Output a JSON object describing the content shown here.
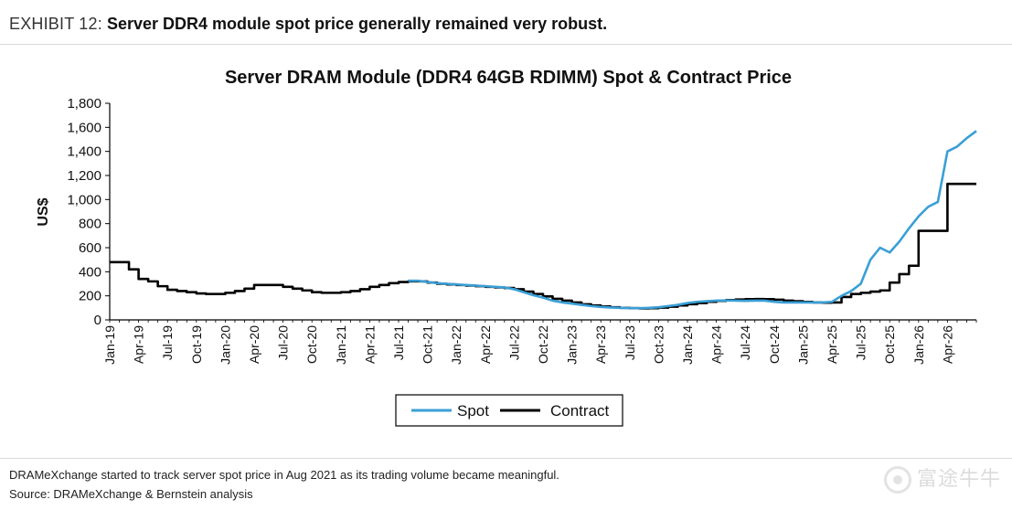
{
  "exhibit": {
    "label": "EXHIBIT 12:",
    "title": "Server DDR4 module spot price generally remained very robust."
  },
  "footnotes": {
    "note": "DRAMeXchange started to track server spot price in Aug 2021 as its trading volume became meaningful.",
    "source": "Source: DRAMeXchange & Bernstein analysis"
  },
  "watermark": {
    "text": "富途牛牛"
  },
  "chart_data": {
    "type": "line",
    "title": "Server DRAM Module (DDR4 64GB RDIMM) Spot & Contract Price",
    "xlabel": "",
    "ylabel": "US$",
    "ylim": [
      0,
      1800
    ],
    "yticks": [
      0,
      200,
      400,
      600,
      800,
      1000,
      1200,
      1400,
      1600,
      1800
    ],
    "ytick_labels": [
      "0",
      "200",
      "400",
      "600",
      "800",
      "1,000",
      "1,200",
      "1,400",
      "1,600",
      "1,800"
    ],
    "x_start": "Jan-19",
    "x_end": "Jul-26",
    "x_tick_labels": [
      "Jan-19",
      "Apr-19",
      "Jul-19",
      "Oct-19",
      "Jan-20",
      "Apr-20",
      "Jul-20",
      "Oct-20",
      "Jan-21",
      "Apr-21",
      "Jul-21",
      "Oct-21",
      "Jan-22",
      "Apr-22",
      "Jul-22",
      "Oct-22",
      "Jan-23",
      "Apr-23",
      "Jul-23",
      "Oct-23",
      "Jan-24",
      "Apr-24",
      "Jul-24",
      "Oct-24",
      "Jan-25",
      "Apr-25",
      "Jul-25",
      "Oct-25",
      "Jan-26",
      "Apr-26"
    ],
    "legend": {
      "placement": "bottom-center",
      "entries": [
        "Spot",
        "Contract"
      ]
    },
    "colors": {
      "spot": "#3a9fd6",
      "contract": "#000000"
    },
    "series": [
      {
        "name": "Contract",
        "step": true,
        "points": [
          [
            "Jan-19",
            480
          ],
          [
            "Mar-19",
            420
          ],
          [
            "Apr-19",
            340
          ],
          [
            "May-19",
            320
          ],
          [
            "Jun-19",
            280
          ],
          [
            "Jul-19",
            250
          ],
          [
            "Aug-19",
            240
          ],
          [
            "Sep-19",
            230
          ],
          [
            "Oct-19",
            220
          ],
          [
            "Nov-19",
            215
          ],
          [
            "Dec-19",
            215
          ],
          [
            "Jan-20",
            225
          ],
          [
            "Feb-20",
            240
          ],
          [
            "Mar-20",
            260
          ],
          [
            "Apr-20",
            290
          ],
          [
            "May-20",
            290
          ],
          [
            "Jun-20",
            290
          ],
          [
            "Jul-20",
            275
          ],
          [
            "Aug-20",
            260
          ],
          [
            "Sep-20",
            245
          ],
          [
            "Oct-20",
            230
          ],
          [
            "Nov-20",
            225
          ],
          [
            "Dec-20",
            225
          ],
          [
            "Jan-21",
            230
          ],
          [
            "Feb-21",
            240
          ],
          [
            "Mar-21",
            255
          ],
          [
            "Apr-21",
            275
          ],
          [
            "May-21",
            290
          ],
          [
            "Jun-21",
            305
          ],
          [
            "Jul-21",
            315
          ],
          [
            "Aug-21",
            320
          ],
          [
            "Sep-21",
            320
          ],
          [
            "Oct-21",
            310
          ],
          [
            "Nov-21",
            300
          ],
          [
            "Dec-21",
            295
          ],
          [
            "Jan-22",
            290
          ],
          [
            "Feb-22",
            285
          ],
          [
            "Mar-22",
            280
          ],
          [
            "Apr-22",
            275
          ],
          [
            "May-22",
            270
          ],
          [
            "Jun-22",
            265
          ],
          [
            "Jul-22",
            255
          ],
          [
            "Aug-22",
            235
          ],
          [
            "Sep-22",
            215
          ],
          [
            "Oct-22",
            195
          ],
          [
            "Nov-22",
            175
          ],
          [
            "Dec-22",
            160
          ],
          [
            "Jan-23",
            145
          ],
          [
            "Feb-23",
            130
          ],
          [
            "Mar-23",
            120
          ],
          [
            "Apr-23",
            112
          ],
          [
            "May-23",
            105
          ],
          [
            "Jun-23",
            100
          ],
          [
            "Jul-23",
            97
          ],
          [
            "Aug-23",
            95
          ],
          [
            "Sep-23",
            97
          ],
          [
            "Oct-23",
            102
          ],
          [
            "Nov-23",
            110
          ],
          [
            "Dec-23",
            120
          ],
          [
            "Jan-24",
            130
          ],
          [
            "Feb-24",
            140
          ],
          [
            "Mar-24",
            150
          ],
          [
            "Apr-24",
            158
          ],
          [
            "May-24",
            165
          ],
          [
            "Jun-24",
            170
          ],
          [
            "Jul-24",
            172
          ],
          [
            "Aug-24",
            173
          ],
          [
            "Sep-24",
            172
          ],
          [
            "Oct-24",
            168
          ],
          [
            "Nov-24",
            160
          ],
          [
            "Dec-24",
            155
          ],
          [
            "Jan-25",
            150
          ],
          [
            "Feb-25",
            145
          ],
          [
            "Mar-25",
            143
          ],
          [
            "Apr-25",
            145
          ],
          [
            "May-25",
            190
          ],
          [
            "Jun-25",
            215
          ],
          [
            "Jul-25",
            225
          ],
          [
            "Aug-25",
            235
          ],
          [
            "Sep-25",
            245
          ],
          [
            "Oct-25",
            310
          ],
          [
            "Nov-25",
            380
          ],
          [
            "Dec-25",
            450
          ],
          [
            "Jan-26",
            740
          ],
          [
            "Feb-26",
            740
          ],
          [
            "Mar-26",
            740
          ],
          [
            "Apr-26",
            1130
          ],
          [
            "May-26",
            1130
          ],
          [
            "Jun-26",
            1130
          ],
          [
            "Jul-26",
            1130
          ]
        ]
      },
      {
        "name": "Spot",
        "step": false,
        "points": [
          [
            "Aug-21",
            325
          ],
          [
            "Sep-21",
            325
          ],
          [
            "Oct-21",
            315
          ],
          [
            "Nov-21",
            305
          ],
          [
            "Dec-21",
            300
          ],
          [
            "Jan-22",
            295
          ],
          [
            "Feb-22",
            290
          ],
          [
            "Mar-22",
            285
          ],
          [
            "Apr-22",
            280
          ],
          [
            "May-22",
            275
          ],
          [
            "Jun-22",
            270
          ],
          [
            "Jul-22",
            255
          ],
          [
            "Aug-22",
            230
          ],
          [
            "Sep-22",
            205
          ],
          [
            "Oct-22",
            185
          ],
          [
            "Nov-22",
            160
          ],
          [
            "Dec-22",
            145
          ],
          [
            "Jan-23",
            135
          ],
          [
            "Feb-23",
            125
          ],
          [
            "Mar-23",
            115
          ],
          [
            "Apr-23",
            108
          ],
          [
            "May-23",
            103
          ],
          [
            "Jun-23",
            100
          ],
          [
            "Jul-23",
            98
          ],
          [
            "Aug-23",
            97
          ],
          [
            "Sep-23",
            100
          ],
          [
            "Oct-23",
            105
          ],
          [
            "Nov-23",
            115
          ],
          [
            "Dec-23",
            125
          ],
          [
            "Jan-24",
            140
          ],
          [
            "Feb-24",
            150
          ],
          [
            "Mar-24",
            155
          ],
          [
            "Apr-24",
            160
          ],
          [
            "May-24",
            162
          ],
          [
            "Jun-24",
            160
          ],
          [
            "Jul-24",
            158
          ],
          [
            "Aug-24",
            160
          ],
          [
            "Sep-24",
            160
          ],
          [
            "Oct-24",
            150
          ],
          [
            "Nov-24",
            145
          ],
          [
            "Dec-24",
            145
          ],
          [
            "Jan-25",
            145
          ],
          [
            "Feb-25",
            145
          ],
          [
            "Mar-25",
            145
          ],
          [
            "Apr-25",
            150
          ],
          [
            "May-25",
            200
          ],
          [
            "Jun-25",
            240
          ],
          [
            "Jul-25",
            300
          ],
          [
            "Aug-25",
            500
          ],
          [
            "Sep-25",
            600
          ],
          [
            "Oct-25",
            560
          ],
          [
            "Nov-25",
            650
          ],
          [
            "Dec-25",
            760
          ],
          [
            "Jan-26",
            860
          ],
          [
            "Feb-26",
            940
          ],
          [
            "Mar-26",
            980
          ],
          [
            "Apr-26",
            1400
          ],
          [
            "May-26",
            1440
          ],
          [
            "Jun-26",
            1510
          ],
          [
            "Jul-26",
            1570
          ]
        ]
      }
    ]
  }
}
